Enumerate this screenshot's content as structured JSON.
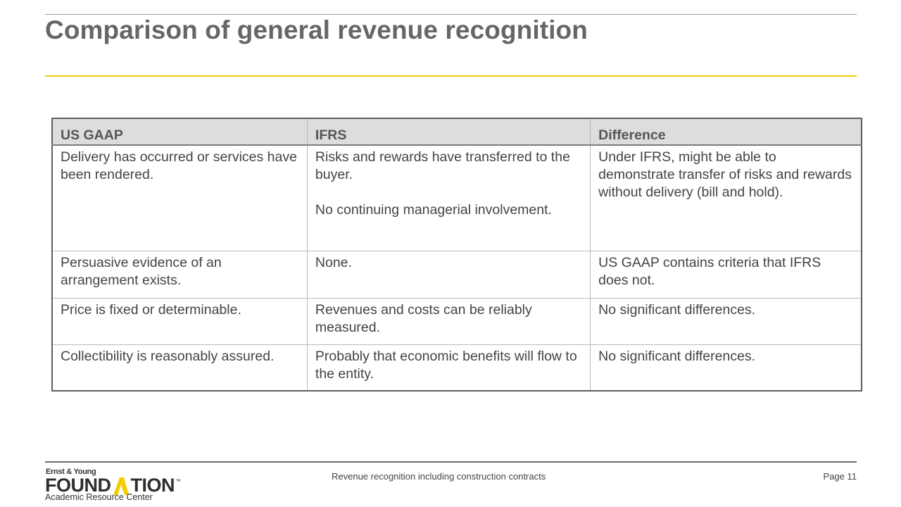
{
  "slide": {
    "title": "Comparison of general revenue recognition"
  },
  "table": {
    "headers": [
      "US GAAP",
      "IFRS",
      "Difference"
    ],
    "rows": [
      {
        "us_gaap": "Delivery has occurred or services have been rendered.",
        "ifrs": [
          "Risks and rewards have transferred to the buyer.",
          "No continuing managerial involvement."
        ],
        "difference": "Under IFRS, might be able to demonstrate transfer of risks and rewards without delivery (bill and hold)."
      },
      {
        "us_gaap": "Persuasive evidence of an arrangement exists.",
        "ifrs": [
          "None."
        ],
        "difference": "US GAAP contains criteria that IFRS does not."
      },
      {
        "us_gaap": "Price is fixed or determinable.",
        "ifrs": [
          "Revenues and costs can be reliably measured."
        ],
        "difference": "No significant differences."
      },
      {
        "us_gaap": "Collectibility is reasonably assured.",
        "ifrs": [
          "Probably that economic benefits will flow to the entity."
        ],
        "difference": "No significant differences."
      }
    ]
  },
  "footer": {
    "logo": {
      "top_line": "Ernst & Young",
      "word_left": "FOUND",
      "word_right": "TION",
      "tm": "™",
      "subtitle": "Academic Resource Center"
    },
    "center_text": "Revenue recognition including construction contracts",
    "page_label": "Page 11"
  },
  "colors": {
    "accent_yellow": "#f2cd00",
    "title_gray": "#666666",
    "header_fill": "#dddddd"
  }
}
